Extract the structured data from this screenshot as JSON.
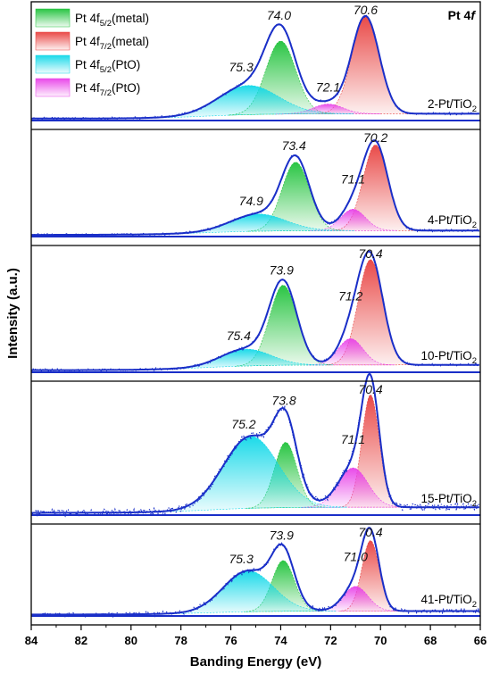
{
  "chart_data": {
    "type": "line",
    "title": "Pt 4f",
    "title_italic_part": "f",
    "xlabel": "Banding Energy (eV)",
    "ylabel": "Intensity (a.u.)",
    "x_reversed": true,
    "xlim": [
      66,
      84
    ],
    "xticks": [
      84,
      82,
      80,
      78,
      76,
      74,
      72,
      70,
      68,
      66
    ],
    "legend": {
      "placement": "top-left",
      "entries": [
        {
          "main": "Pt 4f",
          "sub": "5/2",
          "suffix": "(metal)",
          "color": "#1fc23a",
          "component": "m52"
        },
        {
          "main": "Pt 4f",
          "sub": "7/2",
          "suffix": "(metal)",
          "color": "#e8413f",
          "component": "m72"
        },
        {
          "main": "Pt 4f",
          "sub": "5/2",
          "suffix": "(PtO)",
          "color": "#10d8e8",
          "component": "o52"
        },
        {
          "main": "Pt 4f",
          "sub": "7/2",
          "suffix": "(PtO)",
          "color": "#e840e8",
          "component": "o72"
        }
      ]
    },
    "colors": {
      "envelope": "#1a2fc8",
      "raw_points": "#1a2fc8",
      "baseline": "#1a2fc8"
    },
    "series": [
      {
        "sample_main": "2-Pt/TiO",
        "sample_sub": "2",
        "peaks": [
          {
            "component": "m72",
            "position": 70.6,
            "label": "70.6",
            "rel_height": 1.0,
            "width": 0.55
          },
          {
            "component": "m52",
            "position": 74.0,
            "label": "74.0",
            "rel_height": 0.75,
            "width": 0.6
          },
          {
            "component": "o72",
            "position": 72.1,
            "label": "72.1",
            "rel_height": 0.1,
            "width": 0.6
          },
          {
            "component": "o52",
            "position": 75.3,
            "label": "75.3",
            "rel_height": 0.3,
            "width": 1.2
          }
        ]
      },
      {
        "sample_main": "4-Pt/TiO",
        "sample_sub": "2",
        "peaks": [
          {
            "component": "m72",
            "position": 70.2,
            "label": "70.2",
            "rel_height": 1.0,
            "width": 0.5
          },
          {
            "component": "m52",
            "position": 73.4,
            "label": "73.4",
            "rel_height": 0.8,
            "width": 0.55
          },
          {
            "component": "o72",
            "position": 71.1,
            "label": "71.1",
            "rel_height": 0.25,
            "width": 0.5
          },
          {
            "component": "o52",
            "position": 74.9,
            "label": "74.9",
            "rel_height": 0.2,
            "width": 1.1
          }
        ]
      },
      {
        "sample_main": "10-Pt/TiO",
        "sample_sub": "2",
        "peaks": [
          {
            "component": "m72",
            "position": 70.4,
            "label": "70.4",
            "rel_height": 1.0,
            "width": 0.5
          },
          {
            "component": "m52",
            "position": 73.9,
            "label": "73.9",
            "rel_height": 0.76,
            "width": 0.55
          },
          {
            "component": "o72",
            "position": 71.2,
            "label": "71.2",
            "rel_height": 0.25,
            "width": 0.5
          },
          {
            "component": "o52",
            "position": 75.4,
            "label": "75.4",
            "rel_height": 0.16,
            "width": 1.0
          }
        ]
      },
      {
        "sample_main": "15-Pt/TiO",
        "sample_sub": "2",
        "peaks": [
          {
            "component": "m72",
            "position": 70.4,
            "label": "70.4",
            "rel_height": 1.0,
            "width": 0.35
          },
          {
            "component": "m52",
            "position": 73.8,
            "label": "73.8",
            "rel_height": 0.58,
            "width": 0.45
          },
          {
            "component": "o72",
            "position": 71.1,
            "label": "71.1",
            "rel_height": 0.35,
            "width": 0.6
          },
          {
            "component": "o52",
            "position": 75.2,
            "label": "75.2",
            "rel_height": 0.64,
            "width": 1.1
          }
        ]
      },
      {
        "sample_main": "41-Pt/TiO",
        "sample_sub": "2",
        "peaks": [
          {
            "component": "m72",
            "position": 70.4,
            "label": "70.4",
            "rel_height": 1.0,
            "width": 0.35
          },
          {
            "component": "m52",
            "position": 73.9,
            "label": "73.9",
            "rel_height": 0.72,
            "width": 0.45
          },
          {
            "component": "o72",
            "position": 71.0,
            "label": "71.0",
            "rel_height": 0.35,
            "width": 0.5
          },
          {
            "component": "o52",
            "position": 75.3,
            "label": "75.3",
            "rel_height": 0.58,
            "width": 1.0
          }
        ]
      }
    ]
  }
}
